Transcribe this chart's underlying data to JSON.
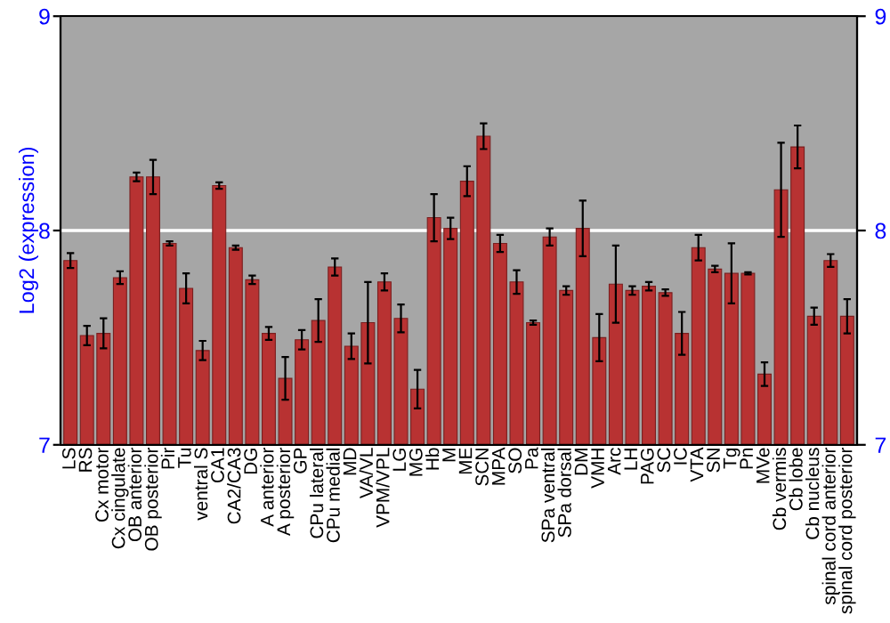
{
  "chart_data": {
    "type": "bar",
    "ylabel": "Log2 (expression)",
    "categories": [
      "LS",
      "RS",
      "Cx motor",
      "Cx cingulate",
      "OB anterior",
      "OB posterior",
      "Pir",
      "Tu",
      "ventral S",
      "CA1",
      "CA2/CA3",
      "DG",
      "A anterior",
      "A posterior",
      "GP",
      "CPu lateral",
      "CPu medial",
      "MD",
      "VA/VL",
      "VPM/VPL",
      "LG",
      "MG",
      "Hb",
      "M",
      "ME",
      "SCN",
      "MPA",
      "SO",
      "Pa",
      "SPa ventral",
      "SPa dorsal",
      "DM",
      "VMH",
      "Arc",
      "LH",
      "PAG",
      "SC",
      "IC",
      "VTA",
      "SN",
      "Tg",
      "Pn",
      "MVe",
      "Cb vermis",
      "Cb lobe",
      "Cb nucleus",
      "spinal cord anterior",
      "spinal cord posterior"
    ],
    "values": [
      7.86,
      7.51,
      7.52,
      7.78,
      8.25,
      8.25,
      7.94,
      7.73,
      7.44,
      8.21,
      7.92,
      7.77,
      7.52,
      7.31,
      7.49,
      7.58,
      7.83,
      7.46,
      7.57,
      7.76,
      7.59,
      7.26,
      8.06,
      8.01,
      8.23,
      8.44,
      7.94,
      7.76,
      7.57,
      7.97,
      7.72,
      8.01,
      7.5,
      7.75,
      7.72,
      7.74,
      7.71,
      7.52,
      7.92,
      7.82,
      7.8,
      7.8,
      7.33,
      8.19,
      8.39,
      7.6,
      7.86,
      7.6
    ],
    "errors": [
      0.035,
      0.045,
      0.07,
      0.03,
      0.02,
      0.08,
      0.01,
      0.07,
      0.045,
      0.015,
      0.01,
      0.02,
      0.03,
      0.1,
      0.045,
      0.1,
      0.04,
      0.06,
      0.19,
      0.04,
      0.065,
      0.09,
      0.11,
      0.05,
      0.07,
      0.06,
      0.04,
      0.055,
      0.01,
      0.04,
      0.02,
      0.13,
      0.11,
      0.18,
      0.02,
      0.02,
      0.015,
      0.1,
      0.06,
      0.015,
      0.14,
      0.005,
      0.055,
      0.22,
      0.1,
      0.04,
      0.03,
      0.08
    ],
    "color": "#b83232",
    "ylim": [
      7,
      9
    ],
    "yticks": [
      7,
      8,
      9
    ],
    "y2lim": [
      7,
      9
    ],
    "y2ticks": [
      7,
      8,
      9
    ],
    "grid": "y"
  }
}
